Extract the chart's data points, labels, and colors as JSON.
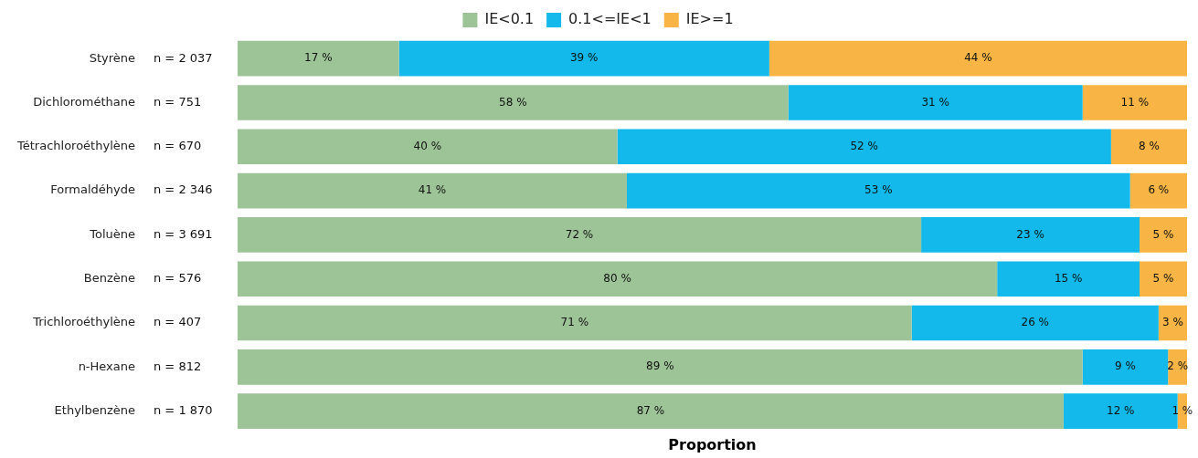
{
  "chart_data": {
    "type": "bar",
    "orientation": "horizontal",
    "stacked": true,
    "xlabel": "Proportion",
    "legend": "top",
    "grid": false,
    "tick_labels": "y",
    "xlim": [
      0,
      100
    ],
    "categories": [
      "Styrène",
      "Dichlorométhane",
      "Tétrachloroéthylène",
      "Formaldéhyde",
      "Toluène",
      "Benzène",
      "Trichloroéthylène",
      "n-Hexane",
      "Ethylbenzène"
    ],
    "series": [
      {
        "name": "IE<0.1",
        "color": "#9dc497",
        "values": [
          17,
          58,
          40,
          41,
          72,
          80,
          71,
          89,
          87
        ],
        "value_labels": [
          "17 %",
          "58 %",
          "40 %",
          "41 %",
          "72 %",
          "80 %",
          "71 %",
          "89 %",
          "87 %"
        ]
      },
      {
        "name": "0.1<=IE<1",
        "color": "#12b9ea",
        "values": [
          39,
          31,
          52,
          53,
          23,
          15,
          26,
          9,
          12
        ],
        "value_labels": [
          "39 %",
          "31 %",
          "52 %",
          "53 %",
          "23 %",
          "15 %",
          "26 %",
          "9 %",
          "12 %"
        ]
      },
      {
        "name": "IE>=1",
        "color": "#f8b444",
        "values": [
          44,
          11,
          8,
          6,
          5,
          5,
          3,
          2,
          1
        ],
        "value_labels": [
          "44 %",
          "11 %",
          "8 %",
          "6 %",
          "5 %",
          "5 %",
          "3 %",
          "2 %",
          "1 %"
        ]
      }
    ],
    "annotations": [
      "n = 2 037",
      "n = 751",
      "n = 670",
      "n = 2 346",
      "n = 3 691",
      "n = 576",
      "n = 407",
      "n = 812",
      "n = 1 870"
    ]
  }
}
